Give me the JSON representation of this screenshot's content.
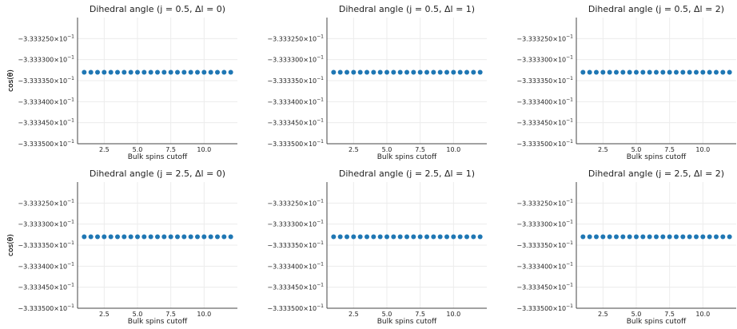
{
  "style": {
    "marker_color": "#1f77b4"
  },
  "chart_data": [
    {
      "type": "scatter",
      "title": "Dihedral angle (j = 0.5, Δl = 0)",
      "xlabel": "Bulk spins cutoff",
      "ylabel": "cos(θ)",
      "xticks": [
        {
          "v": 2.5,
          "label": "2.5"
        },
        {
          "v": 5.0,
          "label": "5.0"
        },
        {
          "v": 7.5,
          "label": "7.5"
        },
        {
          "v": 10.0,
          "label": "10.0"
        }
      ],
      "yticks": [
        {
          "v": -0.333325,
          "label": "−3.333250×10",
          "exp": "−1"
        },
        {
          "v": -0.33333,
          "label": "−3.333300×10",
          "exp": "−1"
        },
        {
          "v": -0.333335,
          "label": "−3.333350×10",
          "exp": "−1"
        },
        {
          "v": -0.33334,
          "label": "−3.333400×10",
          "exp": "−1"
        },
        {
          "v": -0.333345,
          "label": "−3.333450×10",
          "exp": "−1"
        },
        {
          "v": -0.33335,
          "label": "−3.333500×10",
          "exp": "−1"
        }
      ],
      "xlim": [
        0.5,
        12.5
      ],
      "ylim": [
        -0.33335,
        -0.33332
      ],
      "grid": true,
      "x": [
        1.0,
        1.5,
        2.0,
        2.5,
        3.0,
        3.5,
        4.0,
        4.5,
        5.0,
        5.5,
        6.0,
        6.5,
        7.0,
        7.5,
        8.0,
        8.5,
        9.0,
        9.5,
        10.0,
        10.5,
        11.0,
        11.5,
        12.0
      ],
      "y": [
        -0.333333,
        -0.333333,
        -0.333333,
        -0.333333,
        -0.333333,
        -0.333333,
        -0.333333,
        -0.333333,
        -0.333333,
        -0.333333,
        -0.333333,
        -0.333333,
        -0.333333,
        -0.333333,
        -0.333333,
        -0.333333,
        -0.333333,
        -0.333333,
        -0.333333,
        -0.333333,
        -0.333333,
        -0.333333,
        -0.333333
      ]
    },
    {
      "type": "scatter",
      "title": "Dihedral angle (j = 0.5, Δl = 1)",
      "xlabel": "Bulk spins cutoff",
      "ylabel": "cos(θ)",
      "xticks": [
        {
          "v": 2.5,
          "label": "2.5"
        },
        {
          "v": 5.0,
          "label": "5.0"
        },
        {
          "v": 7.5,
          "label": "7.5"
        },
        {
          "v": 10.0,
          "label": "10.0"
        }
      ],
      "yticks": [
        {
          "v": -0.333325,
          "label": "−3.333250×10",
          "exp": "−1"
        },
        {
          "v": -0.33333,
          "label": "−3.333300×10",
          "exp": "−1"
        },
        {
          "v": -0.333335,
          "label": "−3.333350×10",
          "exp": "−1"
        },
        {
          "v": -0.33334,
          "label": "−3.333400×10",
          "exp": "−1"
        },
        {
          "v": -0.333345,
          "label": "−3.333450×10",
          "exp": "−1"
        },
        {
          "v": -0.33335,
          "label": "−3.333500×10",
          "exp": "−1"
        }
      ],
      "xlim": [
        0.5,
        12.5
      ],
      "ylim": [
        -0.33335,
        -0.33332
      ],
      "grid": true,
      "x": [
        1.0,
        1.5,
        2.0,
        2.5,
        3.0,
        3.5,
        4.0,
        4.5,
        5.0,
        5.5,
        6.0,
        6.5,
        7.0,
        7.5,
        8.0,
        8.5,
        9.0,
        9.5,
        10.0,
        10.5,
        11.0,
        11.5,
        12.0
      ],
      "y": [
        -0.333333,
        -0.333333,
        -0.333333,
        -0.333333,
        -0.333333,
        -0.333333,
        -0.333333,
        -0.333333,
        -0.333333,
        -0.333333,
        -0.333333,
        -0.333333,
        -0.333333,
        -0.333333,
        -0.333333,
        -0.333333,
        -0.333333,
        -0.333333,
        -0.333333,
        -0.333333,
        -0.333333,
        -0.333333,
        -0.333333
      ]
    },
    {
      "type": "scatter",
      "title": "Dihedral angle (j = 0.5, Δl = 2)",
      "xlabel": "Bulk spins cutoff",
      "ylabel": "cos(θ)",
      "xticks": [
        {
          "v": 2.5,
          "label": "2.5"
        },
        {
          "v": 5.0,
          "label": "5.0"
        },
        {
          "v": 7.5,
          "label": "7.5"
        },
        {
          "v": 10.0,
          "label": "10.0"
        }
      ],
      "yticks": [
        {
          "v": -0.333325,
          "label": "−3.333250×10",
          "exp": "−1"
        },
        {
          "v": -0.33333,
          "label": "−3.333300×10",
          "exp": "−1"
        },
        {
          "v": -0.333335,
          "label": "−3.333350×10",
          "exp": "−1"
        },
        {
          "v": -0.33334,
          "label": "−3.333400×10",
          "exp": "−1"
        },
        {
          "v": -0.333345,
          "label": "−3.333450×10",
          "exp": "−1"
        },
        {
          "v": -0.33335,
          "label": "−3.333500×10",
          "exp": "−1"
        }
      ],
      "xlim": [
        0.5,
        12.5
      ],
      "ylim": [
        -0.33335,
        -0.33332
      ],
      "grid": true,
      "x": [
        1.0,
        1.5,
        2.0,
        2.5,
        3.0,
        3.5,
        4.0,
        4.5,
        5.0,
        5.5,
        6.0,
        6.5,
        7.0,
        7.5,
        8.0,
        8.5,
        9.0,
        9.5,
        10.0,
        10.5,
        11.0,
        11.5,
        12.0
      ],
      "y": [
        -0.333333,
        -0.333333,
        -0.333333,
        -0.333333,
        -0.333333,
        -0.333333,
        -0.333333,
        -0.333333,
        -0.333333,
        -0.333333,
        -0.333333,
        -0.333333,
        -0.333333,
        -0.333333,
        -0.333333,
        -0.333333,
        -0.333333,
        -0.333333,
        -0.333333,
        -0.333333,
        -0.333333,
        -0.333333,
        -0.333333
      ]
    },
    {
      "type": "scatter",
      "title": "Dihedral angle (j = 2.5, Δl = 0)",
      "xlabel": "Bulk spins cutoff",
      "ylabel": "cos(θ)",
      "xticks": [
        {
          "v": 2.5,
          "label": "2.5"
        },
        {
          "v": 5.0,
          "label": "5.0"
        },
        {
          "v": 7.5,
          "label": "7.5"
        },
        {
          "v": 10.0,
          "label": "10.0"
        }
      ],
      "yticks": [
        {
          "v": -0.333325,
          "label": "−3.333250×10",
          "exp": "−1"
        },
        {
          "v": -0.33333,
          "label": "−3.333300×10",
          "exp": "−1"
        },
        {
          "v": -0.333335,
          "label": "−3.333350×10",
          "exp": "−1"
        },
        {
          "v": -0.33334,
          "label": "−3.333400×10",
          "exp": "−1"
        },
        {
          "v": -0.333345,
          "label": "−3.333450×10",
          "exp": "−1"
        },
        {
          "v": -0.33335,
          "label": "−3.333500×10",
          "exp": "−1"
        }
      ],
      "xlim": [
        0.5,
        12.5
      ],
      "ylim": [
        -0.33335,
        -0.33332
      ],
      "grid": true,
      "x": [
        1.0,
        1.5,
        2.0,
        2.5,
        3.0,
        3.5,
        4.0,
        4.5,
        5.0,
        5.5,
        6.0,
        6.5,
        7.0,
        7.5,
        8.0,
        8.5,
        9.0,
        9.5,
        10.0,
        10.5,
        11.0,
        11.5,
        12.0
      ],
      "y": [
        -0.333333,
        -0.333333,
        -0.333333,
        -0.333333,
        -0.333333,
        -0.333333,
        -0.333333,
        -0.333333,
        -0.333333,
        -0.333333,
        -0.333333,
        -0.333333,
        -0.333333,
        -0.333333,
        -0.333333,
        -0.333333,
        -0.333333,
        -0.333333,
        -0.333333,
        -0.333333,
        -0.333333,
        -0.333333,
        -0.333333
      ]
    },
    {
      "type": "scatter",
      "title": "Dihedral angle (j = 2.5, Δl = 1)",
      "xlabel": "Bulk spins cutoff",
      "ylabel": "cos(θ)",
      "xticks": [
        {
          "v": 2.5,
          "label": "2.5"
        },
        {
          "v": 5.0,
          "label": "5.0"
        },
        {
          "v": 7.5,
          "label": "7.5"
        },
        {
          "v": 10.0,
          "label": "10.0"
        }
      ],
      "yticks": [
        {
          "v": -0.333325,
          "label": "−3.333250×10",
          "exp": "−1"
        },
        {
          "v": -0.33333,
          "label": "−3.333300×10",
          "exp": "−1"
        },
        {
          "v": -0.333335,
          "label": "−3.333350×10",
          "exp": "−1"
        },
        {
          "v": -0.33334,
          "label": "−3.333400×10",
          "exp": "−1"
        },
        {
          "v": -0.333345,
          "label": "−3.333450×10",
          "exp": "−1"
        },
        {
          "v": -0.33335,
          "label": "−3.333500×10",
          "exp": "−1"
        }
      ],
      "xlim": [
        0.5,
        12.5
      ],
      "ylim": [
        -0.33335,
        -0.33332
      ],
      "grid": true,
      "x": [
        1.0,
        1.5,
        2.0,
        2.5,
        3.0,
        3.5,
        4.0,
        4.5,
        5.0,
        5.5,
        6.0,
        6.5,
        7.0,
        7.5,
        8.0,
        8.5,
        9.0,
        9.5,
        10.0,
        10.5,
        11.0,
        11.5,
        12.0
      ],
      "y": [
        -0.333333,
        -0.333333,
        -0.333333,
        -0.333333,
        -0.333333,
        -0.333333,
        -0.333333,
        -0.333333,
        -0.333333,
        -0.333333,
        -0.333333,
        -0.333333,
        -0.333333,
        -0.333333,
        -0.333333,
        -0.333333,
        -0.333333,
        -0.333333,
        -0.333333,
        -0.333333,
        -0.333333,
        -0.333333,
        -0.333333
      ]
    },
    {
      "type": "scatter",
      "title": "Dihedral angle (j = 2.5, Δl = 2)",
      "xlabel": "Bulk spins cutoff",
      "ylabel": "cos(θ)",
      "xticks": [
        {
          "v": 2.5,
          "label": "2.5"
        },
        {
          "v": 5.0,
          "label": "5.0"
        },
        {
          "v": 7.5,
          "label": "7.5"
        },
        {
          "v": 10.0,
          "label": "10.0"
        }
      ],
      "yticks": [
        {
          "v": -0.333325,
          "label": "−3.333250×10",
          "exp": "−1"
        },
        {
          "v": -0.33333,
          "label": "−3.333300×10",
          "exp": "−1"
        },
        {
          "v": -0.333335,
          "label": "−3.333350×10",
          "exp": "−1"
        },
        {
          "v": -0.33334,
          "label": "−3.333400×10",
          "exp": "−1"
        },
        {
          "v": -0.333345,
          "label": "−3.333450×10",
          "exp": "−1"
        },
        {
          "v": -0.33335,
          "label": "−3.333500×10",
          "exp": "−1"
        }
      ],
      "xlim": [
        0.5,
        12.5
      ],
      "ylim": [
        -0.33335,
        -0.33332
      ],
      "grid": true,
      "x": [
        1.0,
        1.5,
        2.0,
        2.5,
        3.0,
        3.5,
        4.0,
        4.5,
        5.0,
        5.5,
        6.0,
        6.5,
        7.0,
        7.5,
        8.0,
        8.5,
        9.0,
        9.5,
        10.0,
        10.5,
        11.0,
        11.5,
        12.0
      ],
      "y": [
        -0.333333,
        -0.333333,
        -0.333333,
        -0.333333,
        -0.333333,
        -0.333333,
        -0.333333,
        -0.333333,
        -0.333333,
        -0.333333,
        -0.333333,
        -0.333333,
        -0.333333,
        -0.333333,
        -0.333333,
        -0.333333,
        -0.333333,
        -0.333333,
        -0.333333,
        -0.333333,
        -0.333333,
        -0.333333,
        -0.333333
      ]
    }
  ]
}
